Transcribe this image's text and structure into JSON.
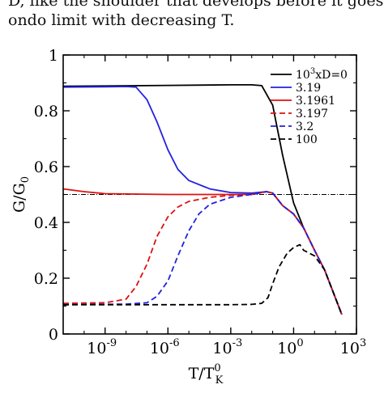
{
  "caption": {
    "line1": "D, like the shoulder that develops before it goes to",
    "line2": "ondo limit with decreasing T."
  },
  "chart_data": {
    "type": "line",
    "xlabel": "T/T",
    "xlabel_sup": "0",
    "xlabel_sub": "K",
    "ylabel": "G/G",
    "ylabel_sub": "0",
    "x_scale": "log10",
    "xlim": [
      1e-11,
      1000
    ],
    "ylim": [
      0,
      1
    ],
    "xticks": [
      {
        "value": 1e-09,
        "base": "10",
        "exp": "-9"
      },
      {
        "value": 1e-06,
        "base": "10",
        "exp": "-6"
      },
      {
        "value": 0.001,
        "base": "10",
        "exp": "-3"
      },
      {
        "value": 1,
        "base": "10",
        "exp": "0"
      },
      {
        "value": 1000,
        "base": "10",
        "exp": "3"
      }
    ],
    "yticks": [
      {
        "value": 0,
        "label": "0"
      },
      {
        "value": 0.2,
        "label": "0.2"
      },
      {
        "value": 0.4,
        "label": "0.4"
      },
      {
        "value": 0.6,
        "label": "0.6"
      },
      {
        "value": 0.8,
        "label": "0.8"
      },
      {
        "value": 1,
        "label": "1"
      }
    ],
    "reference_line": {
      "y": 0.5,
      "style": "dash-dot"
    },
    "legend_position": "top-right",
    "legend_title": {
      "prefix": "10",
      "sup": "3",
      "suffix": "xD=0"
    },
    "series": [
      {
        "name": "10^3xD=0",
        "legend_label": "",
        "color": "#000000",
        "dash": "solid",
        "points": [
          [
            1e-11,
            0.888
          ],
          [
            1e-09,
            0.889
          ],
          [
            1e-06,
            0.891
          ],
          [
            0.001,
            0.893
          ],
          [
            0.01,
            0.893
          ],
          [
            0.03,
            0.89
          ],
          [
            0.1,
            0.82
          ],
          [
            0.3,
            0.64
          ],
          [
            1,
            0.47
          ],
          [
            3,
            0.38
          ],
          [
            10,
            0.3
          ],
          [
            30,
            0.23
          ],
          [
            200,
            0.07
          ]
        ]
      },
      {
        "name": "3.19",
        "legend_label": "3.19",
        "color": "#2222dd",
        "dash": "solid",
        "points": [
          [
            1e-11,
            0.885
          ],
          [
            1e-09,
            0.886
          ],
          [
            1e-08,
            0.887
          ],
          [
            3e-08,
            0.885
          ],
          [
            1e-07,
            0.84
          ],
          [
            3e-07,
            0.76
          ],
          [
            1e-06,
            0.66
          ],
          [
            3e-06,
            0.59
          ],
          [
            1e-05,
            0.55
          ],
          [
            0.0001,
            0.52
          ],
          [
            0.001,
            0.507
          ],
          [
            0.01,
            0.505
          ],
          [
            0.05,
            0.51
          ],
          [
            0.1,
            0.505
          ],
          [
            0.3,
            0.46
          ],
          [
            1,
            0.43
          ],
          [
            3,
            0.38
          ],
          [
            10,
            0.3
          ],
          [
            30,
            0.23
          ],
          [
            200,
            0.07
          ]
        ]
      },
      {
        "name": "3.1961",
        "legend_label": "3.1961",
        "color": "#dd1111",
        "dash": "solid",
        "points": [
          [
            1e-11,
            0.52
          ],
          [
            1e-10,
            0.51
          ],
          [
            1e-09,
            0.503
          ],
          [
            1e-06,
            0.5
          ],
          [
            0.001,
            0.5
          ],
          [
            0.01,
            0.5
          ],
          [
            0.05,
            0.51
          ],
          [
            0.1,
            0.505
          ],
          [
            0.3,
            0.46
          ],
          [
            1,
            0.43
          ],
          [
            3,
            0.38
          ],
          [
            10,
            0.3
          ],
          [
            30,
            0.23
          ],
          [
            200,
            0.07
          ]
        ]
      },
      {
        "name": "3.197",
        "legend_label": "3.197",
        "color": "#dd1111",
        "dash": "dashed",
        "points": [
          [
            1e-11,
            0.11
          ],
          [
            1e-09,
            0.112
          ],
          [
            1e-08,
            0.125
          ],
          [
            3e-08,
            0.17
          ],
          [
            1e-07,
            0.25
          ],
          [
            3e-07,
            0.35
          ],
          [
            1e-06,
            0.42
          ],
          [
            3e-06,
            0.455
          ],
          [
            1e-05,
            0.475
          ],
          [
            0.0001,
            0.49
          ],
          [
            0.001,
            0.497
          ],
          [
            0.01,
            0.5
          ],
          [
            0.05,
            0.51
          ],
          [
            0.1,
            0.505
          ],
          [
            0.3,
            0.46
          ],
          [
            1,
            0.43
          ],
          [
            3,
            0.38
          ],
          [
            10,
            0.3
          ],
          [
            30,
            0.23
          ],
          [
            200,
            0.07
          ]
        ]
      },
      {
        "name": "3.2",
        "legend_label": "3.2",
        "color": "#2222dd",
        "dash": "dashed",
        "points": [
          [
            1e-11,
            0.105
          ],
          [
            1e-08,
            0.107
          ],
          [
            1e-07,
            0.112
          ],
          [
            3e-07,
            0.135
          ],
          [
            1e-06,
            0.19
          ],
          [
            3e-06,
            0.28
          ],
          [
            1e-05,
            0.37
          ],
          [
            3e-05,
            0.43
          ],
          [
            0.0001,
            0.465
          ],
          [
            0.001,
            0.49
          ],
          [
            0.01,
            0.5
          ],
          [
            0.05,
            0.51
          ],
          [
            0.1,
            0.505
          ],
          [
            0.3,
            0.46
          ],
          [
            1,
            0.43
          ],
          [
            3,
            0.38
          ],
          [
            10,
            0.3
          ],
          [
            30,
            0.23
          ],
          [
            200,
            0.07
          ]
        ]
      },
      {
        "name": "100",
        "legend_label": "100",
        "color": "#000000",
        "dash": "dashed",
        "points": [
          [
            1e-11,
            0.105
          ],
          [
            1e-06,
            0.105
          ],
          [
            0.001,
            0.105
          ],
          [
            0.01,
            0.106
          ],
          [
            0.03,
            0.11
          ],
          [
            0.06,
            0.13
          ],
          [
            0.1,
            0.18
          ],
          [
            0.2,
            0.24
          ],
          [
            0.5,
            0.29
          ],
          [
            1,
            0.31
          ],
          [
            2,
            0.32
          ],
          [
            3,
            0.3
          ],
          [
            10,
            0.28
          ],
          [
            30,
            0.23
          ],
          [
            200,
            0.07
          ]
        ]
      }
    ]
  }
}
